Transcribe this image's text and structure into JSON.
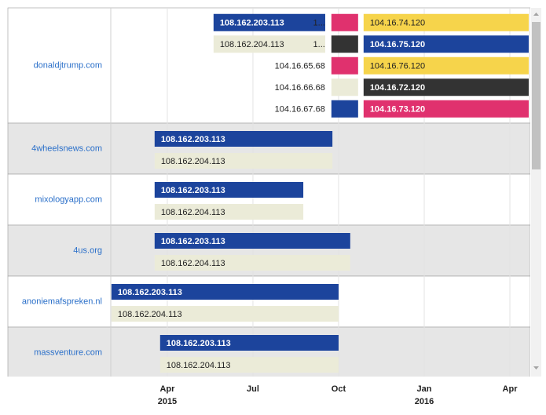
{
  "chart_data": {
    "type": "timeline",
    "xlim": [
      2015.085,
      2016.305
    ],
    "xticks": [
      {
        "value": 2015.25,
        "label": "Apr"
      },
      {
        "value": 2015.5,
        "label": "Jul"
      },
      {
        "value": 2015.75,
        "label": "Oct"
      },
      {
        "value": 2016.0,
        "label": "Jan"
      },
      {
        "value": 2016.25,
        "label": "Apr"
      }
    ],
    "xtick_years": [
      {
        "value": 2015.25,
        "label": "2015"
      },
      {
        "value": 2016.0,
        "label": "2016"
      }
    ],
    "grid": true,
    "rows": [
      {
        "name": "donaldjtrump.com",
        "bars": [
          {
            "label": "108.162.203.113",
            "start": 2015.385,
            "end": 2015.711,
            "color": "#1c449c"
          },
          {
            "label": "108.162.204.113",
            "start": 2015.385,
            "end": 2015.711,
            "color": "#ebebd8"
          },
          {
            "label": "1...",
            "start": 2015.729,
            "end": 2015.807,
            "color": "#e0316e"
          },
          {
            "label": "1...",
            "start": 2015.729,
            "end": 2015.807,
            "color": "#333333"
          },
          {
            "label": "104.16.65.68",
            "start": 2015.729,
            "end": 2015.807,
            "color": "#e0316e"
          },
          {
            "label": "104.16.66.68",
            "start": 2015.729,
            "end": 2015.807,
            "color": "#ebebd8"
          },
          {
            "label": "104.16.67.68",
            "start": 2015.729,
            "end": 2015.807,
            "color": "#1c449c"
          },
          {
            "label": "104.16.74.120",
            "start": 2015.823,
            "end": 2016.305,
            "color": "#f6d44b"
          },
          {
            "label": "104.16.75.120",
            "start": 2015.823,
            "end": 2016.305,
            "color": "#1c449c"
          },
          {
            "label": "104.16.76.120",
            "start": 2015.823,
            "end": 2016.305,
            "color": "#f6d44b"
          },
          {
            "label": "104.16.72.120",
            "start": 2015.823,
            "end": 2016.305,
            "color": "#333333"
          },
          {
            "label": "104.16.73.120",
            "start": 2015.823,
            "end": 2016.305,
            "color": "#e0316e"
          }
        ]
      },
      {
        "name": "4wheelsnews.com",
        "bars": [
          {
            "label": "108.162.203.113",
            "start": 2015.213,
            "end": 2015.732,
            "color": "#1c449c"
          },
          {
            "label": "108.162.204.113",
            "start": 2015.213,
            "end": 2015.732,
            "color": "#ebebd8"
          }
        ]
      },
      {
        "name": "mixologyapp.com",
        "bars": [
          {
            "label": "108.162.203.113",
            "start": 2015.213,
            "end": 2015.647,
            "color": "#1c449c"
          },
          {
            "label": "108.162.204.113",
            "start": 2015.213,
            "end": 2015.647,
            "color": "#ebebd8"
          }
        ]
      },
      {
        "name": "4us.org",
        "bars": [
          {
            "label": "108.162.203.113",
            "start": 2015.213,
            "end": 2015.784,
            "color": "#1c449c"
          },
          {
            "label": "108.162.204.113",
            "start": 2015.213,
            "end": 2015.784,
            "color": "#ebebd8"
          }
        ]
      },
      {
        "name": "anoniemafspreken.nl",
        "bars": [
          {
            "label": "108.162.203.113",
            "start": 2015.087,
            "end": 2015.75,
            "color": "#1c449c"
          },
          {
            "label": "108.162.204.113",
            "start": 2015.087,
            "end": 2015.75,
            "color": "#ebebd8"
          }
        ]
      },
      {
        "name": "massventure.com",
        "bars": [
          {
            "label": "108.162.203.113",
            "start": 2015.229,
            "end": 2015.75,
            "color": "#1c449c"
          },
          {
            "label": "108.162.204.113",
            "start": 2015.229,
            "end": 2015.75,
            "color": "#ebebd8"
          }
        ]
      }
    ]
  }
}
